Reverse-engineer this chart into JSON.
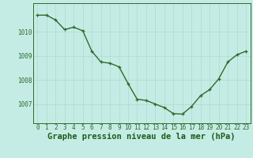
{
  "x": [
    0,
    1,
    2,
    3,
    4,
    5,
    6,
    7,
    8,
    9,
    10,
    11,
    12,
    13,
    14,
    15,
    16,
    17,
    18,
    19,
    20,
    21,
    22,
    23
  ],
  "y": [
    1010.7,
    1010.7,
    1010.5,
    1010.1,
    1010.2,
    1010.05,
    1009.2,
    1008.75,
    1008.7,
    1008.55,
    1007.85,
    1007.2,
    1007.15,
    1007.0,
    1006.85,
    1006.6,
    1006.58,
    1006.9,
    1007.35,
    1007.6,
    1008.05,
    1008.75,
    1009.05,
    1009.2
  ],
  "line_color": "#2d6a2d",
  "marker": "+",
  "markersize": 3.5,
  "linewidth": 1.0,
  "bg_color": "#c5ece4",
  "grid_color": "#b0d8d0",
  "xlabel": "Graphe pression niveau de la mer (hPa)",
  "xlabel_fontsize": 7.5,
  "xlabel_color": "#1a5c1a",
  "tick_color": "#2d6a2d",
  "tick_fontsize": 5.5,
  "yticks": [
    1007,
    1008,
    1009,
    1010
  ],
  "ylim": [
    1006.2,
    1011.2
  ],
  "xlim": [
    -0.5,
    23.5
  ],
  "xticks": [
    0,
    1,
    2,
    3,
    4,
    5,
    6,
    7,
    8,
    9,
    10,
    11,
    12,
    13,
    14,
    15,
    16,
    17,
    18,
    19,
    20,
    21,
    22,
    23
  ]
}
